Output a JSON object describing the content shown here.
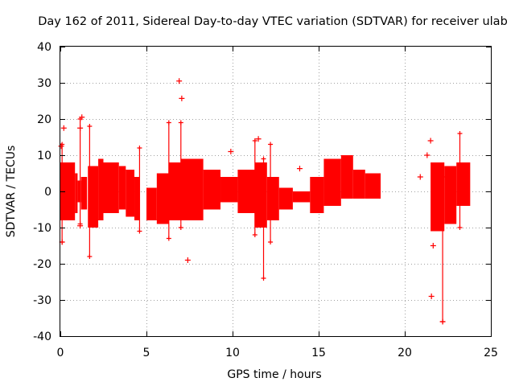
{
  "chart_data": {
    "type": "scatter",
    "title": "Day 162 of 2011, Sidereal Day-to-day VTEC variation (SDTVAR) for receiver ulab",
    "xlabel": "GPS time / hours",
    "ylabel": "SDTVAR / TECUs",
    "xlim": [
      0,
      25
    ],
    "ylim": [
      -40,
      40
    ],
    "xticks": [
      0,
      5,
      10,
      15,
      20,
      25
    ],
    "yticks": [
      -40,
      -30,
      -20,
      -10,
      0,
      10,
      20,
      30,
      40
    ],
    "grid": true,
    "color": "#ff0000",
    "marker": "+",
    "series": [
      {
        "name": "SDTVAR",
        "bands": [
          {
            "x": [
              0.0,
              0.85
            ],
            "upper": 8,
            "lower": -8
          },
          {
            "x": [
              0.85,
              1.0
            ],
            "upper": 5,
            "lower": -6
          },
          {
            "x": [
              1.0,
              1.2
            ],
            "upper": 3,
            "lower": -3
          },
          {
            "x": [
              1.2,
              1.55
            ],
            "upper": 4,
            "lower": -5
          },
          {
            "x": [
              1.6,
              2.2
            ],
            "upper": 7,
            "lower": -10
          },
          {
            "x": [
              2.2,
              2.5
            ],
            "upper": 9,
            "lower": -8
          },
          {
            "x": [
              2.5,
              3.4
            ],
            "upper": 8,
            "lower": -6
          },
          {
            "x": [
              3.4,
              3.8
            ],
            "upper": 7,
            "lower": -5
          },
          {
            "x": [
              3.8,
              4.3
            ],
            "upper": 6,
            "lower": -7
          },
          {
            "x": [
              4.3,
              4.6
            ],
            "upper": 4,
            "lower": -8
          },
          {
            "x": [
              5.0,
              5.6
            ],
            "upper": 1,
            "lower": -8
          },
          {
            "x": [
              5.6,
              6.3
            ],
            "upper": 5,
            "lower": -9
          },
          {
            "x": [
              6.3,
              7.0
            ],
            "upper": 8,
            "lower": -8
          },
          {
            "x": [
              7.0,
              8.3
            ],
            "upper": 9,
            "lower": -8
          },
          {
            "x": [
              8.3,
              9.3
            ],
            "upper": 6,
            "lower": -5
          },
          {
            "x": [
              9.3,
              10.3
            ],
            "upper": 4,
            "lower": -3
          },
          {
            "x": [
              10.3,
              11.3
            ],
            "upper": 6,
            "lower": -6
          },
          {
            "x": [
              11.3,
              12.0
            ],
            "upper": 8,
            "lower": -10
          },
          {
            "x": [
              12.0,
              12.7
            ],
            "upper": 4,
            "lower": -8
          },
          {
            "x": [
              12.7,
              13.5
            ],
            "upper": 1,
            "lower": -5
          },
          {
            "x": [
              13.5,
              14.5
            ],
            "upper": 0,
            "lower": -3
          },
          {
            "x": [
              14.5,
              15.3
            ],
            "upper": 4,
            "lower": -6
          },
          {
            "x": [
              15.3,
              16.3
            ],
            "upper": 9,
            "lower": -4
          },
          {
            "x": [
              16.3,
              17.0
            ],
            "upper": 10,
            "lower": -2
          },
          {
            "x": [
              17.0,
              17.7
            ],
            "upper": 6,
            "lower": -2
          },
          {
            "x": [
              17.7,
              18.6
            ],
            "upper": 5,
            "lower": -2
          },
          {
            "x": [
              21.5,
              22.3
            ],
            "upper": 8,
            "lower": -11
          },
          {
            "x": [
              22.3,
              23.0
            ],
            "upper": 7,
            "lower": -9
          },
          {
            "x": [
              23.0,
              23.8
            ],
            "upper": 8,
            "lower": -4
          }
        ],
        "spikes": [
          {
            "x": 0.1,
            "low": -14,
            "high": 13
          },
          {
            "x": 1.15,
            "low": -9,
            "high": 20
          },
          {
            "x": 1.7,
            "low": -18,
            "high": 18
          },
          {
            "x": 4.6,
            "low": -11,
            "high": 12
          },
          {
            "x": 6.3,
            "low": -13,
            "high": 19
          },
          {
            "x": 7.0,
            "low": -10,
            "high": 19
          },
          {
            "x": 11.3,
            "low": -12,
            "high": 14
          },
          {
            "x": 11.8,
            "low": -24,
            "high": 9
          },
          {
            "x": 12.2,
            "low": -14,
            "high": 13
          },
          {
            "x": 22.2,
            "low": -36,
            "high": 4
          },
          {
            "x": 23.2,
            "low": -10,
            "high": 16
          }
        ],
        "outliers": [
          {
            "x": 0.05,
            "y": 12.5
          },
          {
            "x": 0.2,
            "y": 17.5
          },
          {
            "x": 0.1,
            "y": -14
          },
          {
            "x": 1.25,
            "y": 20.5
          },
          {
            "x": 1.15,
            "y": 17.5
          },
          {
            "x": 1.15,
            "y": -9.5
          },
          {
            "x": 6.9,
            "y": 30.5
          },
          {
            "x": 7.05,
            "y": 25.7
          },
          {
            "x": 7.4,
            "y": -19
          },
          {
            "x": 9.9,
            "y": 11
          },
          {
            "x": 11.5,
            "y": 14.5
          },
          {
            "x": 13.9,
            "y": 6.3
          },
          {
            "x": 20.9,
            "y": 4
          },
          {
            "x": 21.3,
            "y": 10
          },
          {
            "x": 21.5,
            "y": 14
          },
          {
            "x": 21.65,
            "y": -15
          },
          {
            "x": 21.55,
            "y": -29
          },
          {
            "x": 22.2,
            "y": -36
          }
        ]
      }
    ]
  }
}
